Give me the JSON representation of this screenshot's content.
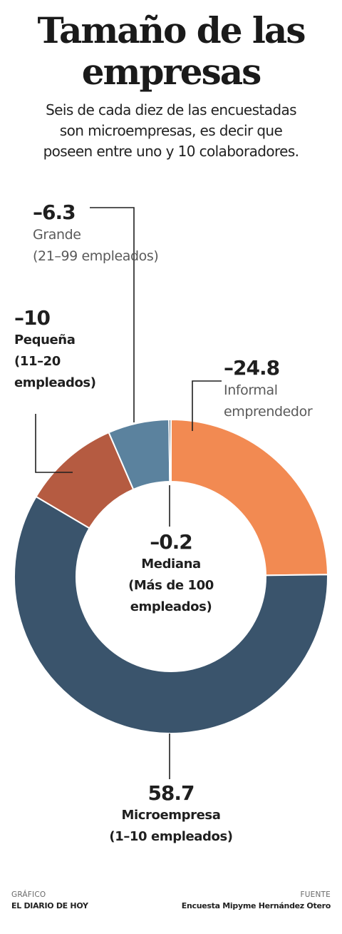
{
  "header": {
    "title_line1": "Tamaño de las",
    "title_line2": "empresas",
    "subtitle_line1": "Seis de cada diez de las encuestadas",
    "subtitle_line2": "son microempresas, es decir que",
    "subtitle_line3": "poseen entre uno y 10 colaboradores."
  },
  "chart_data": {
    "type": "pie",
    "donut": true,
    "title": "Tamaño de las empresas",
    "slices": [
      {
        "key": "informal",
        "value": 24.8,
        "value_label": "–24.8",
        "name": "Informal",
        "desc": "emprendedor",
        "color": "#f28a52"
      },
      {
        "key": "micro",
        "value": 58.7,
        "value_label": "58.7",
        "name": "Microempresa",
        "desc": "(1–10 empleados)",
        "color": "#3a546c"
      },
      {
        "key": "pequena",
        "value": 10,
        "value_label": "–10",
        "name": "Pequeña",
        "desc": "(11–20",
        "desc2": "empleados)",
        "color": "#b55b41"
      },
      {
        "key": "grande",
        "value": 6.3,
        "value_label": "–6.3",
        "name": "Grande",
        "desc": "(21–99 empleados)",
        "color": "#5b829e"
      },
      {
        "key": "mediana",
        "value": 0.2,
        "value_label": "–0.2",
        "name": "Mediana",
        "desc": "(Más de 100",
        "desc2": "empleados)",
        "color": "#1f2f40"
      }
    ]
  },
  "footer": {
    "left_head": "GRÁFICO",
    "left_body": "EL DIARIO DE HOY",
    "right_head": "FUENTE",
    "right_body": "Encuesta Mipyme Hernández Otero"
  }
}
